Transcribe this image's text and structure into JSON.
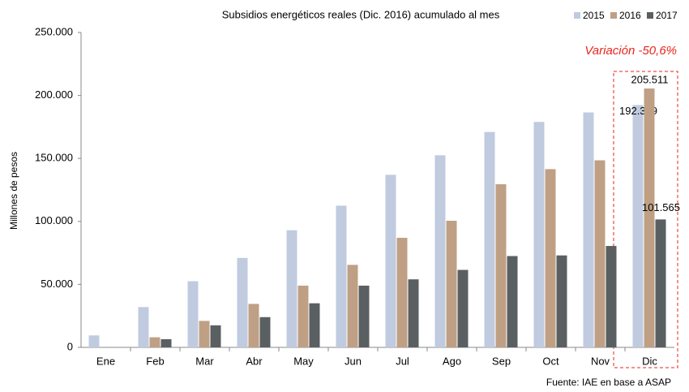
{
  "chart_data": {
    "type": "bar",
    "title": "Subsidios energéticos reales (Dic. 2016) acumulado al mes",
    "y_label": "Millones de pesos",
    "annotation": "Variación -50,6%",
    "source": "Fuente: IAE  en base a ASAP",
    "categories": [
      "Ene",
      "Feb",
      "Mar",
      "Abr",
      "May",
      "Jun",
      "Jul",
      "Ago",
      "Sep",
      "Oct",
      "Nov",
      "Dic"
    ],
    "series": [
      {
        "name": "2015",
        "color": "#c0cbe0",
        "values": [
          9500,
          32000,
          52500,
          71000,
          93000,
          112500,
          137000,
          152500,
          171000,
          179000,
          186500,
          192369
        ],
        "value_labels": [
          null,
          null,
          null,
          null,
          null,
          null,
          null,
          null,
          null,
          null,
          null,
          "192.369"
        ]
      },
      {
        "name": "2016",
        "color": "#bfa084",
        "values": [
          null,
          8000,
          21000,
          34500,
          49000,
          65500,
          87000,
          100500,
          129500,
          141500,
          148500,
          205511
        ],
        "value_labels": [
          null,
          null,
          null,
          null,
          null,
          null,
          null,
          null,
          null,
          null,
          null,
          "205.511"
        ]
      },
      {
        "name": "2017",
        "color": "#5a5f62",
        "values": [
          null,
          6500,
          17500,
          24000,
          35000,
          49000,
          54000,
          61500,
          72500,
          73000,
          80500,
          101565
        ],
        "value_labels": [
          null,
          null,
          null,
          null,
          null,
          null,
          null,
          null,
          null,
          null,
          null,
          "101.565"
        ]
      }
    ],
    "ylim": [
      0,
      250000
    ],
    "yticks": [
      0,
      {
        "value": 50000,
        "label": "50.000"
      },
      {
        "value": 100000,
        "label": "100.000"
      },
      {
        "value": 150000,
        "label": "150.000"
      },
      {
        "value": 200000,
        "label": "200.000"
      },
      {
        "value": 250000,
        "label": "250.000"
      }
    ],
    "grid": false,
    "legend": "top-right"
  }
}
